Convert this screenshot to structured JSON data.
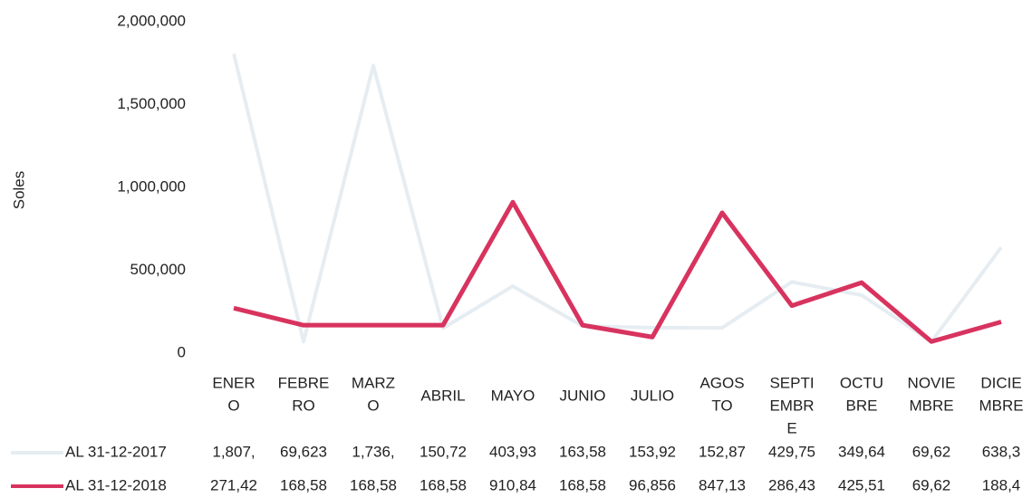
{
  "chart_data": {
    "type": "line",
    "y_label": "Soles",
    "categories": [
      [
        "ENER",
        "O"
      ],
      [
        "FEBRE",
        "RO"
      ],
      [
        "MARZ",
        "O"
      ],
      [
        "ABRIL"
      ],
      [
        "MAYO"
      ],
      [
        "JUNIO"
      ],
      [
        "JULIO"
      ],
      [
        "AGOS",
        "TO"
      ],
      [
        "SEPTI",
        "EMBR",
        "E"
      ],
      [
        "OCTU",
        "BRE"
      ],
      [
        "NOVIE",
        "MBRE"
      ],
      [
        "DICIE",
        "MBRE"
      ]
    ],
    "series": [
      {
        "name": "AL 31-12-2017",
        "color": "#e6edf2",
        "values": [
          1807000,
          69623,
          1736000,
          150720,
          403930,
          163580,
          153920,
          152870,
          429750,
          349640,
          69620,
          638300
        ],
        "value_labels": [
          "1,807,",
          "69,623",
          "1,736,",
          "150,72",
          "403,93",
          "163,58",
          "153,92",
          "152,87",
          "429,75",
          "349,64",
          "69,62",
          "638,3"
        ]
      },
      {
        "name": "AL 31-12-2018",
        "color": "#d8335f",
        "values": [
          271420,
          168580,
          168580,
          168580,
          910840,
          168580,
          96856,
          847130,
          286430,
          425510,
          69620,
          188400
        ],
        "value_labels": [
          "271,42",
          "168,58",
          "168,58",
          "168,58",
          "910,84",
          "168,58",
          "96,856",
          "847,13",
          "286,43",
          "425,51",
          "69,62",
          "188,4"
        ]
      }
    ],
    "ylim": [
      0,
      2000000
    ],
    "yticks": [
      0,
      {
        "value": 500000,
        "label": "500,000"
      },
      {
        "value": 1000000,
        "label": "1,000,000"
      },
      {
        "value": 1500000,
        "label": "1,500,000"
      },
      {
        "value": 2000000,
        "label": "2,000,000"
      }
    ],
    "grid": false
  }
}
